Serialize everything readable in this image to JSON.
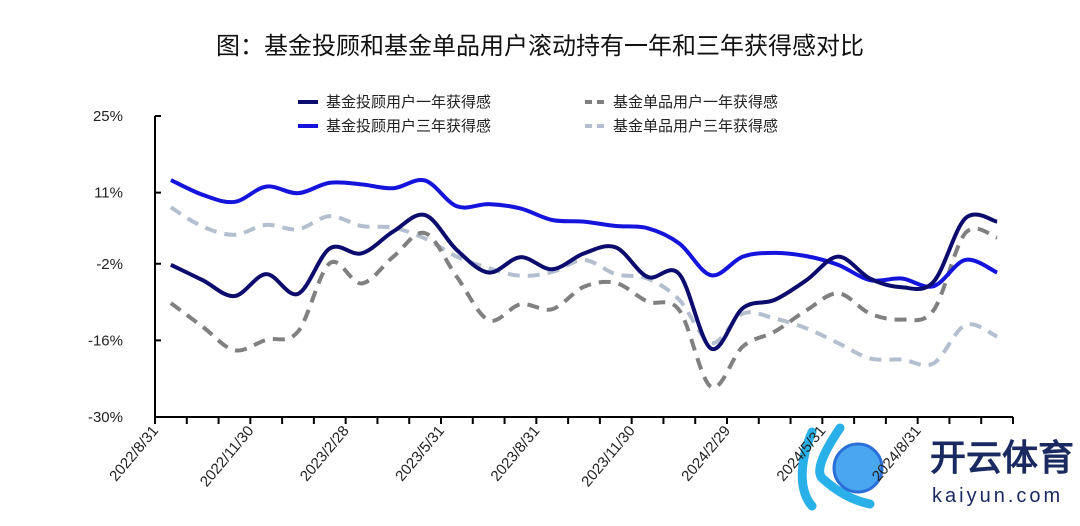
{
  "chart_data": {
    "type": "line",
    "title": "图：基金投顾和基金单品用户滚动持有一年和三年获得感对比",
    "xlabel": "",
    "ylabel": "",
    "ylim": [
      -30,
      25
    ],
    "yticks": [
      "25%",
      "11%",
      "-2%",
      "-16%",
      "-30%"
    ],
    "ytick_values": [
      25,
      11,
      -2,
      -16,
      -30
    ],
    "xtick_labels": [
      "2022/8/31",
      "2022/11/30",
      "2023/2/28",
      "2023/5/31",
      "2023/8/31",
      "2023/11/30",
      "2024/2/29",
      "2024/5/31",
      "2024/8/31"
    ],
    "xtick_every": 3,
    "n_points": 27,
    "grid": false,
    "legend_position": "top",
    "series": [
      {
        "name": "基金投顾用户一年获得感",
        "color": "#0c0c6e",
        "dash": false,
        "values": [
          -2.2,
          -5.0,
          -7.9,
          -3.9,
          -7.5,
          0.8,
          -0.1,
          3.9,
          6.9,
          0.5,
          -3.6,
          -0.8,
          -3.0,
          -0.1,
          1.0,
          -4.4,
          -3.9,
          -17.5,
          -10.1,
          -8.6,
          -5.0,
          -0.7,
          -4.7,
          -6.3,
          -5.3,
          6.3,
          5.7
        ]
      },
      {
        "name": "基金投顾用户三年获得感",
        "color": "#1414dc",
        "dash": false,
        "values": [
          13.3,
          10.6,
          9.3,
          12.1,
          10.9,
          12.8,
          12.5,
          11.8,
          13.2,
          8.5,
          8.9,
          8.1,
          6.0,
          5.7,
          4.9,
          4.5,
          1.7,
          -4.1,
          -0.7,
          0.0,
          -0.6,
          -2.2,
          -5.0,
          -4.7,
          -6.1,
          -1.3,
          -3.6
        ]
      },
      {
        "name": "基金单品用户一年获得感",
        "color": "#808080",
        "dash": true,
        "values": [
          -9.2,
          -13.5,
          -17.8,
          -15.9,
          -14.4,
          -1.9,
          -5.6,
          -0.7,
          3.6,
          -4.4,
          -12.3,
          -9.4,
          -10.3,
          -6.2,
          -5.5,
          -8.9,
          -10.5,
          -24.5,
          -17.1,
          -14.4,
          -10.5,
          -7.4,
          -11.1,
          -12.2,
          -10.5,
          3.6,
          2.8
        ]
      },
      {
        "name": "基金单品用户三年获得感",
        "color": "#b3bfcf",
        "dash": true,
        "values": [
          8.3,
          4.8,
          3.3,
          5.1,
          4.3,
          6.7,
          4.9,
          4.6,
          2.6,
          -0.7,
          -2.8,
          -4.2,
          -3.5,
          -1.3,
          -3.9,
          -4.7,
          -8.6,
          -16.5,
          -11.1,
          -12.0,
          -13.8,
          -16.5,
          -19.3,
          -19.5,
          -20.2,
          -13.2,
          -15.3
        ]
      }
    ]
  },
  "watermark": {
    "name": "开云体育",
    "url_text": "kaiyun.com"
  }
}
